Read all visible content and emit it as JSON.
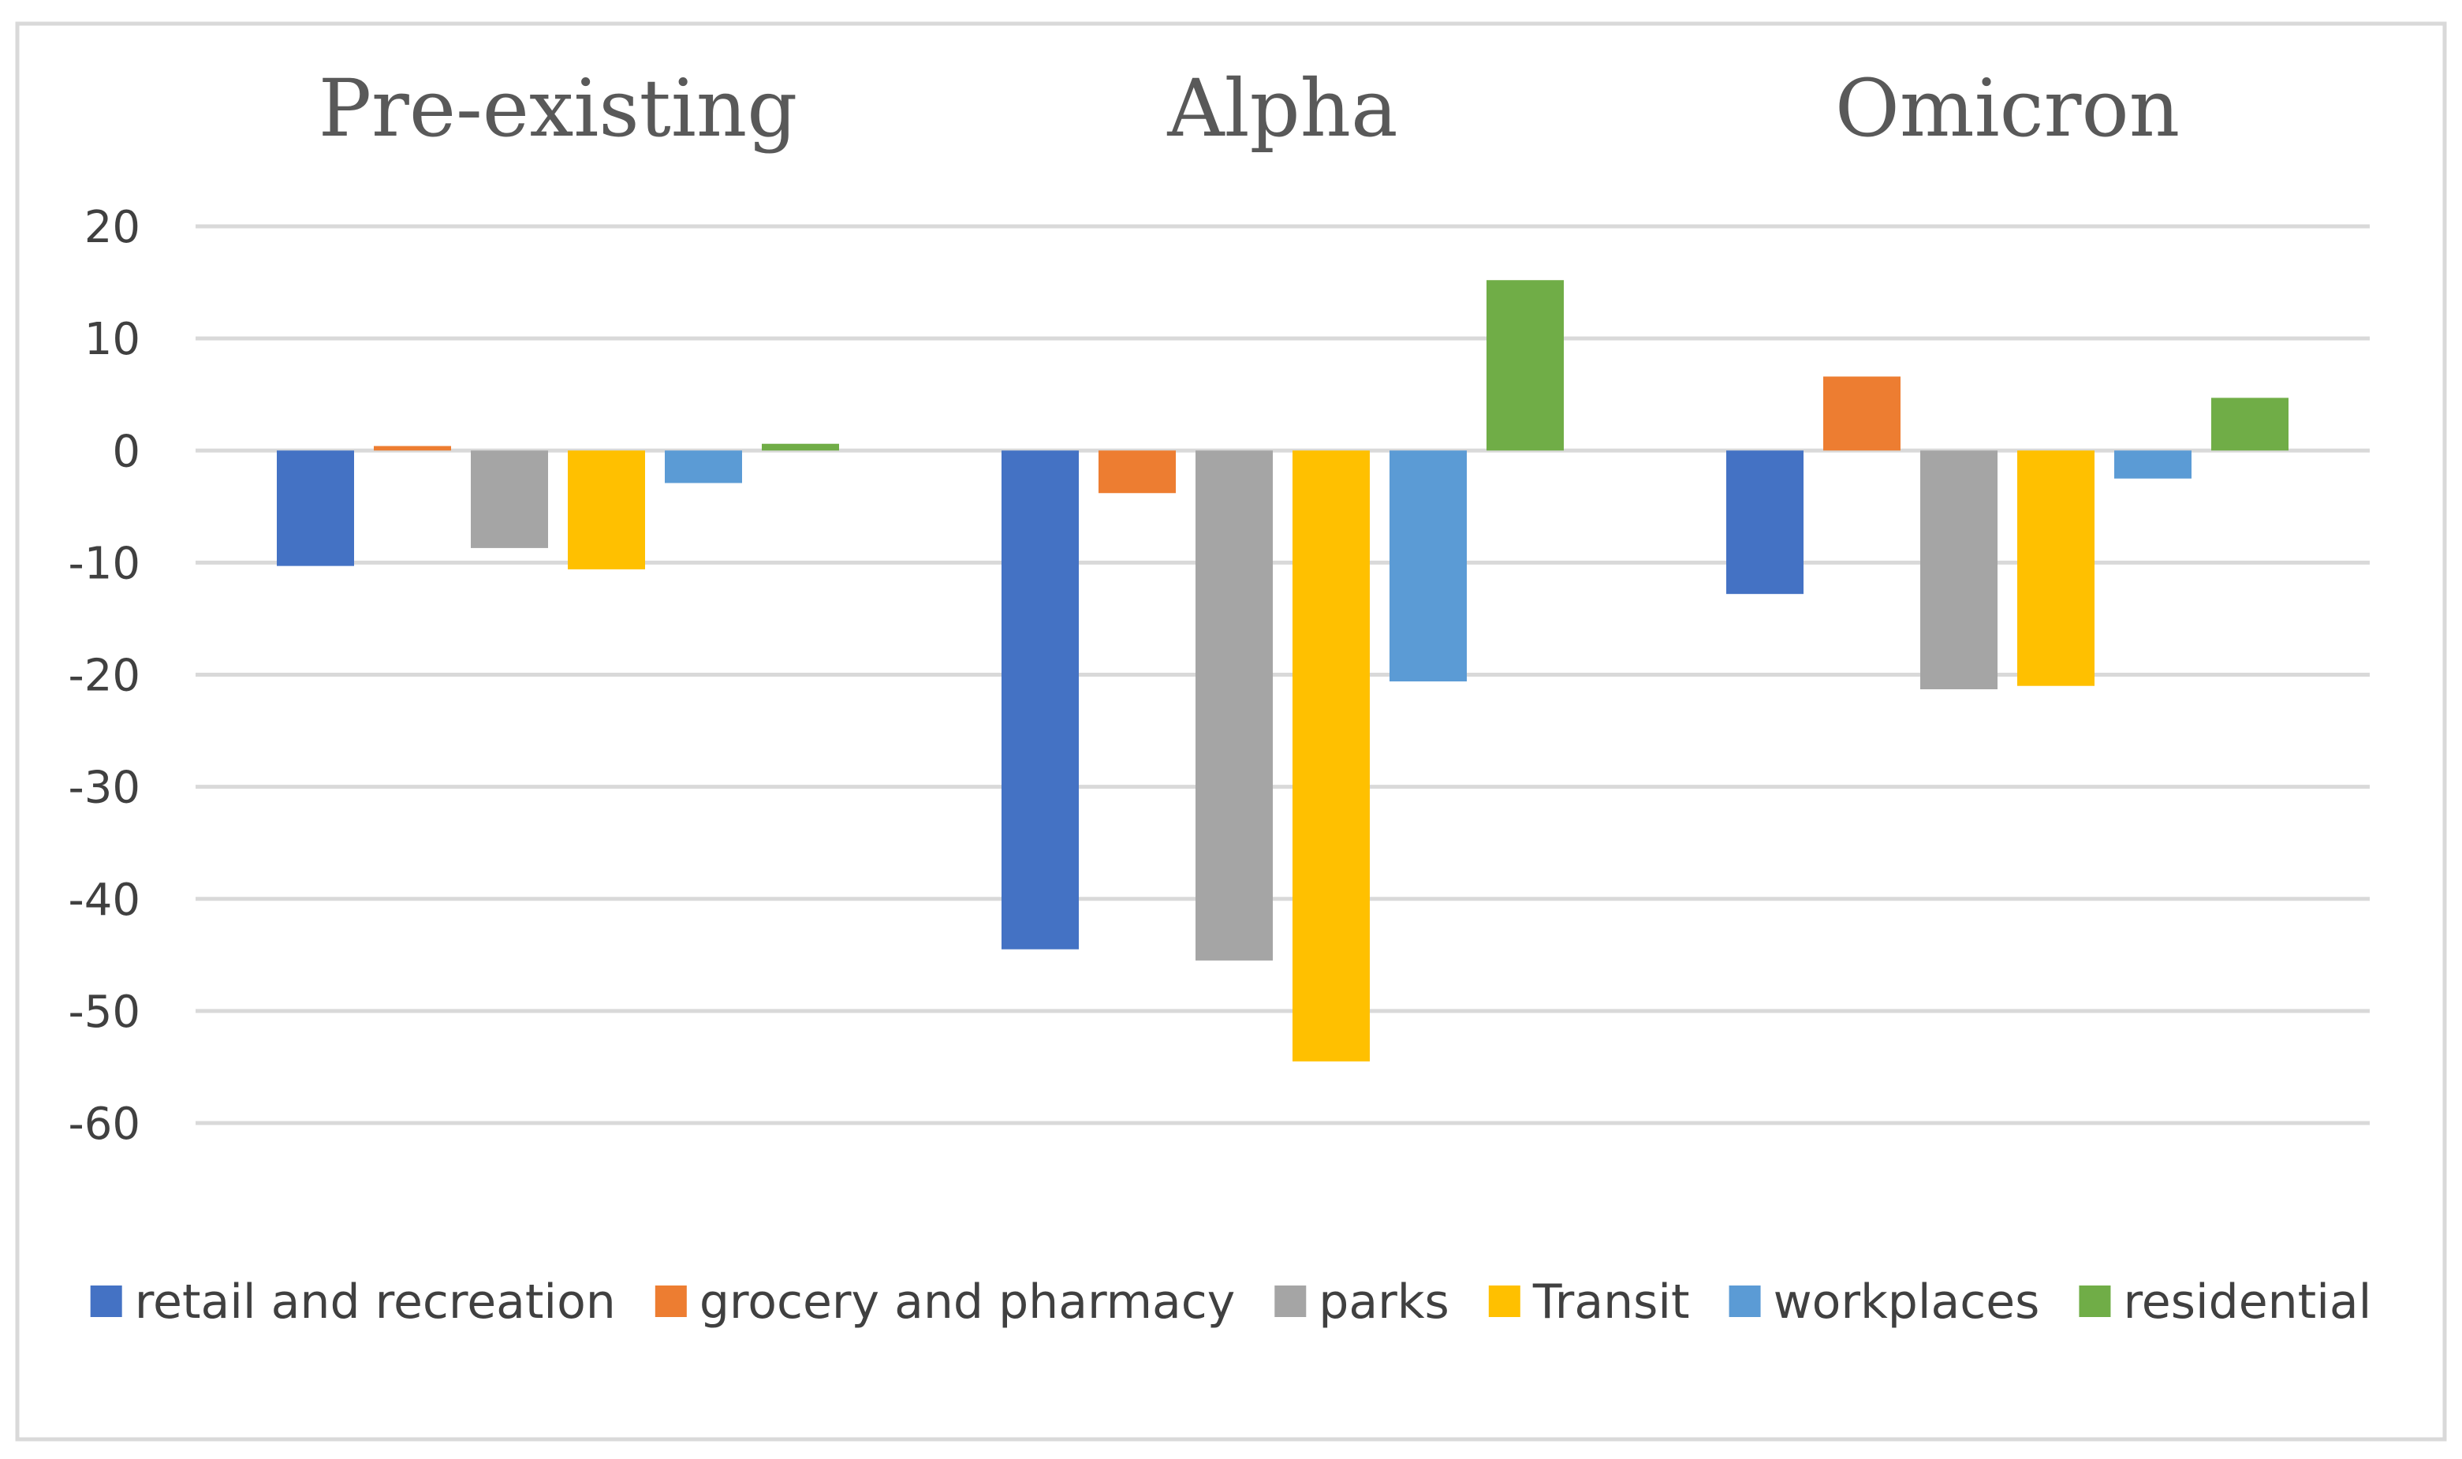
{
  "chart_data": {
    "type": "bar",
    "title": "",
    "xlabel": "",
    "ylabel": "",
    "categories": [
      "Pre-existing",
      "Alpha",
      "Omicron"
    ],
    "series": [
      {
        "name": "retail and recreation",
        "color": "#4472C4",
        "values": [
          -10.3,
          -44.5,
          -12.8
        ]
      },
      {
        "name": "grocery and pharmacy",
        "color": "#ED7D31",
        "values": [
          0.4,
          -3.8,
          6.6
        ]
      },
      {
        "name": "parks",
        "color": "#A5A5A5",
        "values": [
          -8.7,
          -45.5,
          -21.3
        ]
      },
      {
        "name": "Transit",
        "color": "#FFC000",
        "values": [
          -10.6,
          -54.5,
          -21.0
        ]
      },
      {
        "name": "workplaces",
        "color": "#5B9BD5",
        "values": [
          -2.9,
          -20.6,
          -2.5
        ]
      },
      {
        "name": "residential",
        "color": "#70AD47",
        "values": [
          0.6,
          15.2,
          4.7
        ]
      }
    ],
    "y_ticks": [
      "20",
      "10",
      "0",
      "-10",
      "-20",
      "-30",
      "-40",
      "-50",
      "-60"
    ],
    "ylim": [
      -60,
      20
    ],
    "grid": true,
    "legend_position": "bottom"
  }
}
